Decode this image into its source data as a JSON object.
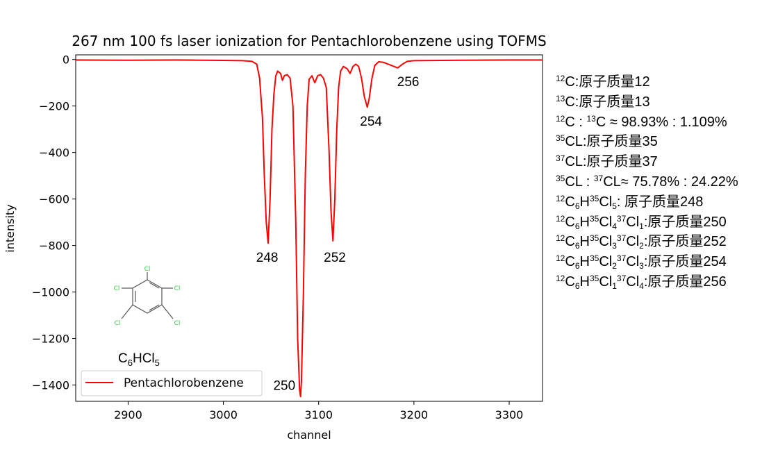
{
  "chart_data": {
    "type": "line",
    "title": "267 nm 100 fs laser ionization for Pentachlorobenzene using TOFMS",
    "xlabel": "channel",
    "ylabel": "intensity",
    "xlim": [
      2845,
      3335
    ],
    "ylim": [
      -1470,
      20
    ],
    "xticks": [
      2900,
      3000,
      3100,
      3200,
      3300
    ],
    "yticks": [
      0,
      -200,
      -400,
      -600,
      -800,
      -1000,
      -1200,
      -1400
    ],
    "grid": false,
    "legend_position": "lower-left",
    "series": [
      {
        "name": "Pentachlorobenzene",
        "color": "#ff0000",
        "points": [
          [
            2845,
            -2
          ],
          [
            2900,
            -3
          ],
          [
            2950,
            -2
          ],
          [
            3000,
            -4
          ],
          [
            3020,
            -5
          ],
          [
            3030,
            -8
          ],
          [
            3035,
            -20
          ],
          [
            3038,
            -80
          ],
          [
            3041,
            -250
          ],
          [
            3043,
            -500
          ],
          [
            3045,
            -700
          ],
          [
            3047,
            -790
          ],
          [
            3049,
            -600
          ],
          [
            3051,
            -300
          ],
          [
            3053,
            -150
          ],
          [
            3055,
            -70
          ],
          [
            3057,
            -50
          ],
          [
            3060,
            -60
          ],
          [
            3062,
            -90
          ],
          [
            3064,
            -70
          ],
          [
            3067,
            -65
          ],
          [
            3070,
            -80
          ],
          [
            3073,
            -200
          ],
          [
            3076,
            -700
          ],
          [
            3078,
            -1200
          ],
          [
            3080,
            -1420
          ],
          [
            3081,
            -1450
          ],
          [
            3082,
            -1380
          ],
          [
            3084,
            -1000
          ],
          [
            3086,
            -500
          ],
          [
            3088,
            -200
          ],
          [
            3090,
            -85
          ],
          [
            3093,
            -70
          ],
          [
            3096,
            -100
          ],
          [
            3099,
            -70
          ],
          [
            3102,
            -65
          ],
          [
            3105,
            -80
          ],
          [
            3108,
            -120
          ],
          [
            3111,
            -400
          ],
          [
            3113,
            -650
          ],
          [
            3115,
            -780
          ],
          [
            3117,
            -600
          ],
          [
            3119,
            -300
          ],
          [
            3121,
            -120
          ],
          [
            3123,
            -50
          ],
          [
            3126,
            -30
          ],
          [
            3130,
            -40
          ],
          [
            3133,
            -60
          ],
          [
            3136,
            -30
          ],
          [
            3139,
            -20
          ],
          [
            3142,
            -30
          ],
          [
            3145,
            -80
          ],
          [
            3148,
            -160
          ],
          [
            3151,
            -205
          ],
          [
            3153,
            -170
          ],
          [
            3156,
            -80
          ],
          [
            3159,
            -25
          ],
          [
            3163,
            -10
          ],
          [
            3168,
            -12
          ],
          [
            3173,
            -20
          ],
          [
            3178,
            -28
          ],
          [
            3183,
            -36
          ],
          [
            3188,
            -20
          ],
          [
            3193,
            -8
          ],
          [
            3200,
            -5
          ],
          [
            3250,
            -3
          ],
          [
            3300,
            -2
          ],
          [
            3335,
            -2
          ]
        ]
      }
    ],
    "peak_labels": [
      {
        "text": "248",
        "x": 3046,
        "y": -870
      },
      {
        "text": "250",
        "x": 3064,
        "y": -1420
      },
      {
        "text": "252",
        "x": 3117,
        "y": -870
      },
      {
        "text": "254",
        "x": 3155,
        "y": -285
      },
      {
        "text": "256",
        "x": 3194,
        "y": -115
      }
    ],
    "structure_caption": "C6HCl5",
    "structure_atom_label": "Cl"
  },
  "notes": [
    {
      "parts": [
        [
          "sup",
          "12"
        ],
        [
          "t",
          "C:原子质量12"
        ]
      ]
    },
    {
      "parts": [
        [
          "sup",
          "13"
        ],
        [
          "t",
          "C:原子质量13"
        ]
      ]
    },
    {
      "parts": [
        [
          "sup",
          "12"
        ],
        [
          "t",
          "C : "
        ],
        [
          "sup",
          "13"
        ],
        [
          "t",
          "C ≈ 98.93% : 1.109%"
        ]
      ]
    },
    {
      "parts": [
        [
          "sup",
          "35"
        ],
        [
          "t",
          "CL:原子质量35"
        ]
      ]
    },
    {
      "parts": [
        [
          "sup",
          "37"
        ],
        [
          "t",
          "CL:原子质量37"
        ]
      ]
    },
    {
      "parts": [
        [
          "sup",
          "35"
        ],
        [
          "t",
          "CL : "
        ],
        [
          "sup",
          "37"
        ],
        [
          "t",
          "CL≈ 75.78% : 24.22%"
        ]
      ]
    },
    {
      "parts": [
        [
          "sup",
          "12"
        ],
        [
          "t",
          "C"
        ],
        [
          "sub",
          "6"
        ],
        [
          "t",
          "H"
        ],
        [
          "sup",
          "35"
        ],
        [
          "t",
          "Cl"
        ],
        [
          "sub",
          "5"
        ],
        [
          "t",
          ":       原子质量248"
        ]
      ]
    },
    {
      "parts": [
        [
          "sup",
          "12"
        ],
        [
          "t",
          "C"
        ],
        [
          "sub",
          "6"
        ],
        [
          "t",
          "H"
        ],
        [
          "sup",
          "35"
        ],
        [
          "t",
          "Cl"
        ],
        [
          "sub",
          "4"
        ],
        [
          "sup",
          "37"
        ],
        [
          "t",
          "Cl"
        ],
        [
          "sub",
          "1"
        ],
        [
          "t",
          ":原子质量250"
        ]
      ]
    },
    {
      "parts": [
        [
          "sup",
          "12"
        ],
        [
          "t",
          "C"
        ],
        [
          "sub",
          "6"
        ],
        [
          "t",
          "H"
        ],
        [
          "sup",
          "35"
        ],
        [
          "t",
          "Cl"
        ],
        [
          "sub",
          "3"
        ],
        [
          "sup",
          "37"
        ],
        [
          "t",
          "Cl"
        ],
        [
          "sub",
          "2"
        ],
        [
          "t",
          ":原子质量252"
        ]
      ]
    },
    {
      "parts": [
        [
          "sup",
          "12"
        ],
        [
          "t",
          "C"
        ],
        [
          "sub",
          "6"
        ],
        [
          "t",
          "H"
        ],
        [
          "sup",
          "35"
        ],
        [
          "t",
          "Cl"
        ],
        [
          "sub",
          "2"
        ],
        [
          "sup",
          "37"
        ],
        [
          "t",
          "Cl"
        ],
        [
          "sub",
          "3"
        ],
        [
          "t",
          ":原子质量254"
        ]
      ]
    },
    {
      "parts": [
        [
          "sup",
          "12"
        ],
        [
          "t",
          "C"
        ],
        [
          "sub",
          "6"
        ],
        [
          "t",
          "H"
        ],
        [
          "sup",
          "35"
        ],
        [
          "t",
          "Cl"
        ],
        [
          "sub",
          "1"
        ],
        [
          "sup",
          "37"
        ],
        [
          "t",
          "Cl"
        ],
        [
          "sub",
          "4"
        ],
        [
          "t",
          ":原子质量256"
        ]
      ]
    }
  ]
}
